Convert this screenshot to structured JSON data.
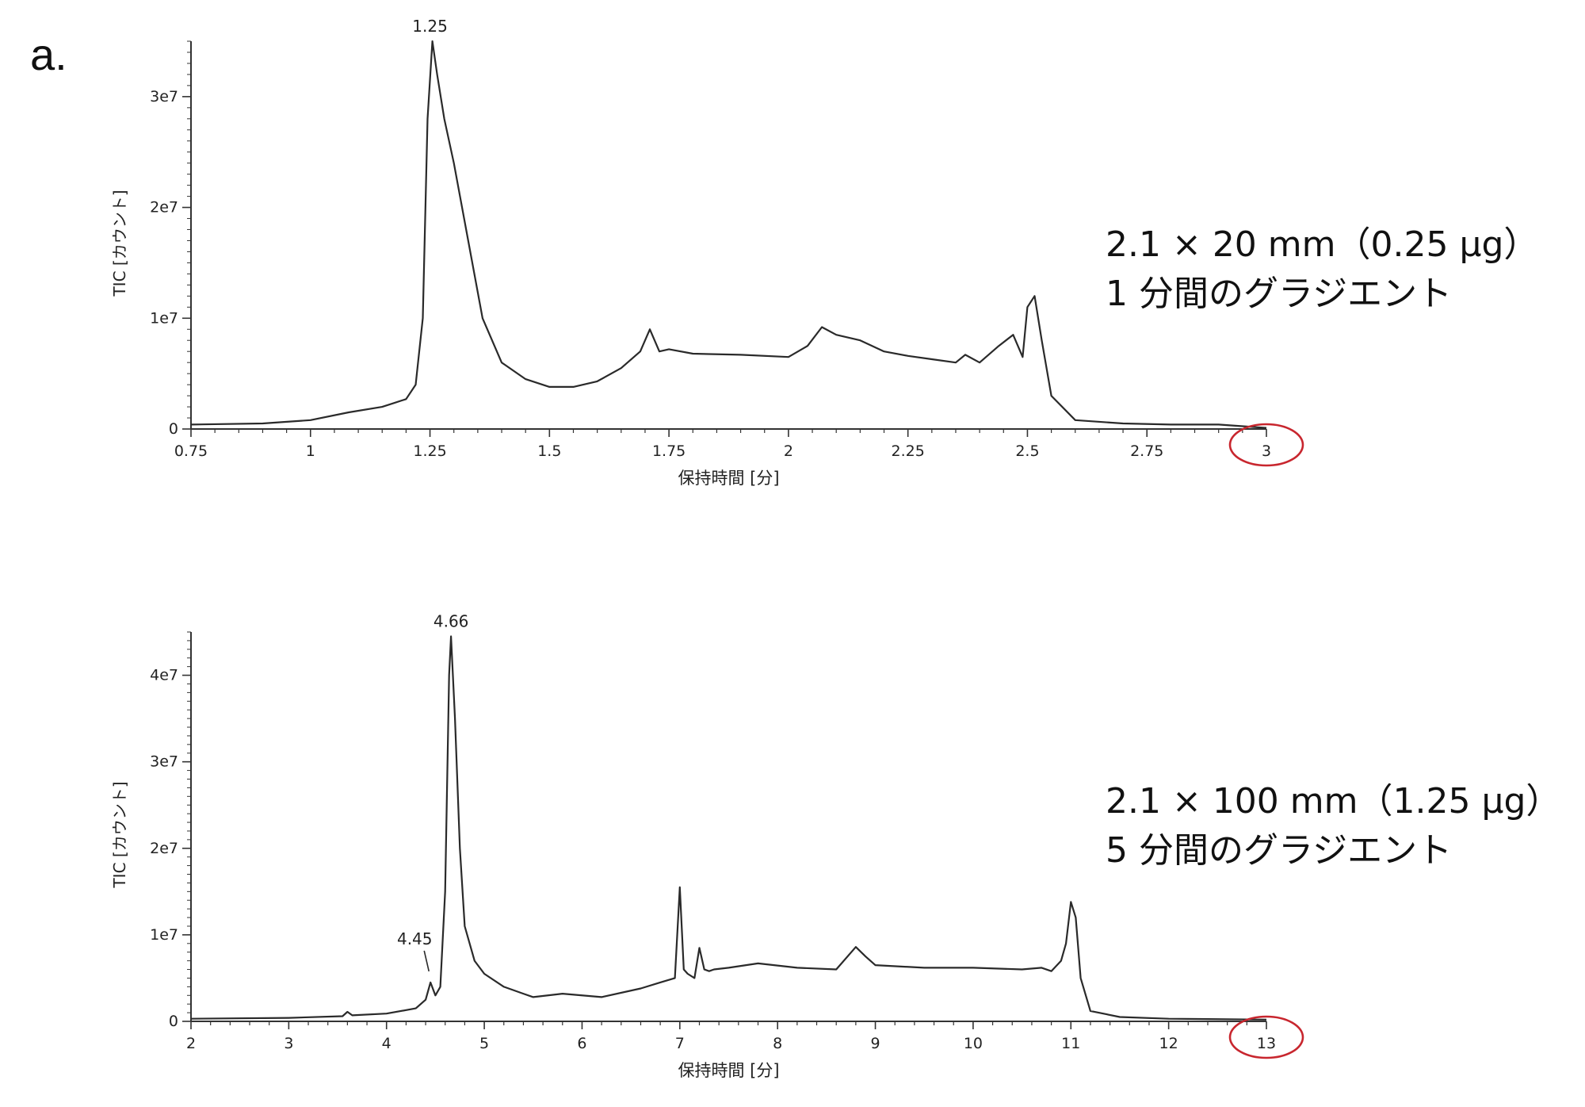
{
  "figure": {
    "panel_label": "a."
  },
  "colors": {
    "trace": "#2a2a2a",
    "axis": "#333333",
    "highlight_circle": "#c8262e"
  },
  "annotations": [
    {
      "line1": "2.1 × 20 mm（0.25 μg）",
      "line2": "1 分間のグラジエント"
    },
    {
      "line1": "2.1 × 100 mm（1.25 μg）",
      "line2": "5 分間のグラジエント"
    }
  ],
  "chart_data": [
    {
      "type": "line",
      "title": "",
      "xlabel": "保持時間 [分]",
      "ylabel": "TIC [カウント]",
      "xlim": [
        0.75,
        3.0
      ],
      "ylim": [
        0,
        35000000
      ],
      "x_ticks": [
        0.75,
        1,
        1.25,
        1.5,
        1.75,
        2,
        2.25,
        2.5,
        2.75,
        3
      ],
      "x_tick_labels": [
        "0.75",
        "1",
        "1.25",
        "1.5",
        "1.75",
        "2",
        "2.25",
        "2.5",
        "2.75",
        "3"
      ],
      "y_ticks": [
        0,
        10000000,
        20000000,
        30000000
      ],
      "y_tick_labels": [
        "0",
        "1e7",
        "2e7",
        "3e7"
      ],
      "circled_tick": "3",
      "peak_labels": [
        {
          "x": 1.25,
          "y": 35000000,
          "text": "1.25"
        }
      ],
      "series": [
        {
          "x": [
            0.75,
            0.9,
            1.0,
            1.08,
            1.15,
            1.2,
            1.22,
            1.235,
            1.245,
            1.255,
            1.265,
            1.28,
            1.3,
            1.33,
            1.36,
            1.4,
            1.45,
            1.5,
            1.55,
            1.6,
            1.65,
            1.69,
            1.71,
            1.73,
            1.75,
            1.8,
            1.9,
            2.0,
            2.04,
            2.07,
            2.1,
            2.15,
            2.2,
            2.25,
            2.3,
            2.35,
            2.37,
            2.4,
            2.44,
            2.47,
            2.49,
            2.5,
            2.515,
            2.53,
            2.55,
            2.6,
            2.7,
            2.8,
            2.9,
            3.0
          ],
          "y": [
            400000,
            500000,
            800000,
            1500000,
            2000000,
            2700000,
            4000000,
            10000000,
            28000000,
            35000000,
            32000000,
            28000000,
            24000000,
            17000000,
            10000000,
            6000000,
            4500000,
            3800000,
            3800000,
            4300000,
            5500000,
            7000000,
            9000000,
            7000000,
            7200000,
            6800000,
            6700000,
            6500000,
            7500000,
            9200000,
            8500000,
            8000000,
            7000000,
            6600000,
            6300000,
            6000000,
            6700000,
            6000000,
            7500000,
            8500000,
            6500000,
            11000000,
            12000000,
            8000000,
            3000000,
            800000,
            500000,
            400000,
            400000,
            100000
          ]
        }
      ]
    },
    {
      "type": "line",
      "title": "",
      "xlabel": "保持時間 [分]",
      "ylabel": "TIC [カウント]",
      "xlim": [
        2,
        13
      ],
      "ylim": [
        0,
        45000000
      ],
      "x_ticks": [
        2,
        3,
        4,
        5,
        6,
        7,
        8,
        9,
        10,
        11,
        12,
        13
      ],
      "x_tick_labels": [
        "2",
        "3",
        "4",
        "5",
        "6",
        "7",
        "8",
        "9",
        "10",
        "11",
        "12",
        "13"
      ],
      "y_ticks": [
        0,
        10000000,
        20000000,
        30000000,
        40000000
      ],
      "y_tick_labels": [
        "0",
        "1e7",
        "2e7",
        "3e7",
        "4e7"
      ],
      "circled_tick": "13",
      "peak_labels": [
        {
          "x": 4.66,
          "y": 44500000,
          "text": "4.66"
        },
        {
          "x": 4.45,
          "y": 4500000,
          "text": "4.45"
        }
      ],
      "series": [
        {
          "x": [
            2.0,
            3.0,
            3.55,
            3.6,
            3.65,
            4.0,
            4.3,
            4.4,
            4.45,
            4.5,
            4.55,
            4.6,
            4.64,
            4.66,
            4.7,
            4.75,
            4.8,
            4.9,
            5.0,
            5.2,
            5.4,
            5.5,
            5.8,
            6.2,
            6.6,
            6.8,
            6.95,
            7.0,
            7.04,
            7.08,
            7.15,
            7.2,
            7.25,
            7.3,
            7.35,
            7.5,
            7.8,
            8.2,
            8.6,
            8.8,
            8.9,
            9.0,
            9.5,
            10.0,
            10.5,
            10.7,
            10.8,
            10.9,
            10.95,
            11.0,
            11.05,
            11.1,
            11.2,
            11.5,
            12.0,
            13.0
          ],
          "y": [
            300000,
            400000,
            600000,
            1100000,
            700000,
            900000,
            1500000,
            2500000,
            4500000,
            3000000,
            4000000,
            15000000,
            40000000,
            44500000,
            35000000,
            20000000,
            11000000,
            7000000,
            5500000,
            4000000,
            3200000,
            2800000,
            3200000,
            2800000,
            3800000,
            4500000,
            5000000,
            15500000,
            6000000,
            5500000,
            5000000,
            8500000,
            6000000,
            5800000,
            6000000,
            6200000,
            6700000,
            6200000,
            6000000,
            8600000,
            7500000,
            6500000,
            6200000,
            6200000,
            6000000,
            6200000,
            5800000,
            7000000,
            9000000,
            13800000,
            12000000,
            5000000,
            1200000,
            500000,
            300000,
            200000
          ]
        }
      ]
    }
  ]
}
